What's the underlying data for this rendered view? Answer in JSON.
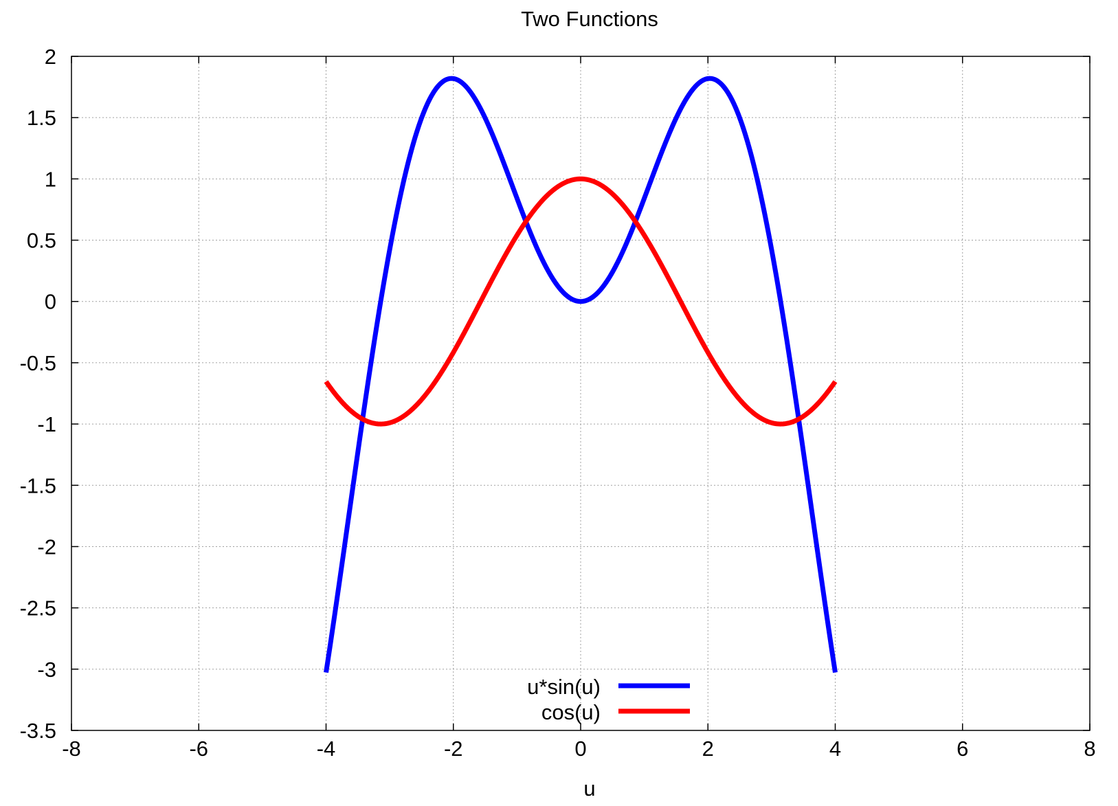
{
  "chart_data": {
    "type": "line",
    "title": "Two Functions",
    "xlabel": "u",
    "ylabel": "",
    "xlim": [
      -8,
      8
    ],
    "ylim": [
      -3.5,
      2
    ],
    "xticks": [
      -8,
      -6,
      -4,
      -2,
      0,
      2,
      4,
      6,
      8
    ],
    "yticks": [
      2,
      1.5,
      1,
      0.5,
      0,
      -0.5,
      -1,
      -1.5,
      -2,
      -2.5,
      -3,
      -3.5
    ],
    "xtick_labels": [
      "-8",
      "-6",
      "-4",
      "-2",
      "0",
      "2",
      "4",
      "6",
      "8"
    ],
    "ytick_labels": [
      "2",
      "1.5",
      "1",
      "0.5",
      "0",
      "-0.5",
      "-1",
      "-1.5",
      "-2",
      "-2.5",
      "-3",
      "-3.5"
    ],
    "grid": true,
    "legend_position": "bottom-center",
    "series": [
      {
        "name": "u*sin(u)",
        "color": "#0000ff",
        "x": [
          -4,
          -3.5,
          -3,
          -2.5,
          -2,
          -1.5,
          -1,
          -0.5,
          0,
          0.5,
          1,
          1.5,
          2,
          2.5,
          3,
          3.5,
          4
        ],
        "y": [
          -3.027,
          -1.228,
          0.423,
          1.496,
          1.819,
          1.496,
          0.841,
          0.24,
          0,
          0.24,
          0.841,
          1.496,
          1.819,
          1.496,
          0.423,
          -1.228,
          -3.027
        ]
      },
      {
        "name": "cos(u)",
        "color": "#ff0000",
        "x": [
          -4,
          -3.5,
          -3,
          -2.5,
          -2,
          -1.5,
          -1,
          -0.5,
          0,
          0.5,
          1,
          1.5,
          2,
          2.5,
          3,
          3.5,
          4
        ],
        "y": [
          -0.654,
          -0.936,
          -0.99,
          -0.801,
          -0.416,
          0.071,
          0.54,
          0.878,
          1,
          0.878,
          0.54,
          0.071,
          -0.416,
          -0.801,
          -0.99,
          -0.936,
          -0.654
        ]
      }
    ]
  }
}
